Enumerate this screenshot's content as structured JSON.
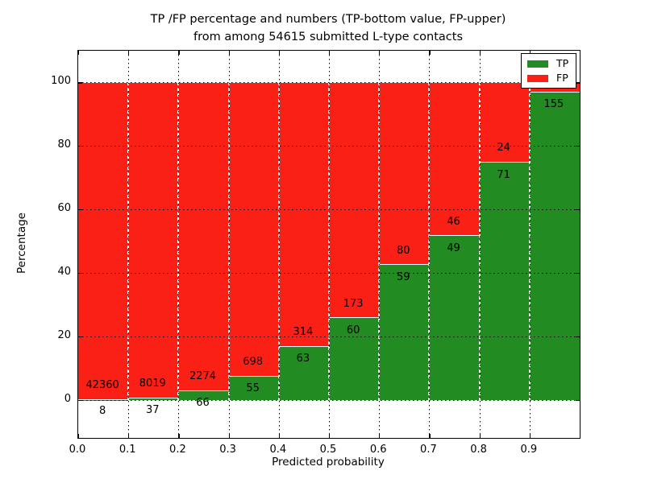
{
  "figure": {
    "title_line1": "TP /FP percentage and numbers (TP-bottom value, FP-upper)",
    "title_line2": "from among 54615 submitted L-type contacts"
  },
  "axes": {
    "xlabel": "Predicted probability",
    "ylabel": "Percentage",
    "x_tick_labels": [
      "0.0",
      "0.1",
      "0.2",
      "0.3",
      "0.4",
      "0.5",
      "0.6",
      "0.7",
      "0.8",
      "0.9"
    ],
    "x_tick_values": [
      0.0,
      0.1,
      0.2,
      0.3,
      0.4,
      0.5,
      0.6,
      0.7,
      0.8,
      0.9
    ],
    "y_tick_labels": [
      "0",
      "20",
      "40",
      "60",
      "80",
      "100"
    ],
    "y_tick_values": [
      0,
      20,
      40,
      60,
      80,
      100
    ],
    "xlim": [
      0.0,
      1.0
    ],
    "ylim": [
      -12,
      110
    ],
    "grid": "dotted"
  },
  "legend": {
    "position": "upper-right",
    "items": [
      {
        "label": "TP",
        "color": "#228b22"
      },
      {
        "label": "FP",
        "color": "#fb2016"
      }
    ]
  },
  "colors": {
    "tp": "#228b22",
    "fp": "#fb2016",
    "grid": "#000000",
    "background": "#ffffff",
    "text": "#000000"
  },
  "chart_data": {
    "type": "bar",
    "stacked": true,
    "percent_stack": true,
    "bin_width": 0.1,
    "bin_starts": [
      0.0,
      0.1,
      0.2,
      0.3,
      0.4,
      0.5,
      0.6,
      0.7,
      0.8,
      0.9
    ],
    "series": [
      {
        "name": "TP",
        "counts": [
          8,
          37,
          66,
          55,
          63,
          60,
          59,
          49,
          71,
          155
        ],
        "pct": [
          0.02,
          0.46,
          2.82,
          7.3,
          16.71,
          25.75,
          42.45,
          51.58,
          74.74,
          96.9
        ]
      },
      {
        "name": "FP",
        "counts": [
          42360,
          8019,
          2274,
          698,
          314,
          173,
          80,
          46,
          24,
          null
        ],
        "pct": [
          99.98,
          99.54,
          97.18,
          92.7,
          83.29,
          74.25,
          57.55,
          48.42,
          25.26,
          3.1
        ]
      }
    ],
    "bar_value_labels": {
      "tp": [
        "8",
        "37",
        "66",
        "55",
        "63",
        "60",
        "59",
        "49",
        "71",
        "155"
      ],
      "fp": [
        "42360",
        "8019",
        "2274",
        "698",
        "314",
        "173",
        "80",
        "46",
        "24",
        ""
      ]
    },
    "title": "TP /FP percentage and numbers (TP-bottom value, FP-upper) from among 54615 submitted L-type contacts",
    "xlabel": "Predicted probability",
    "ylabel": "Percentage"
  }
}
